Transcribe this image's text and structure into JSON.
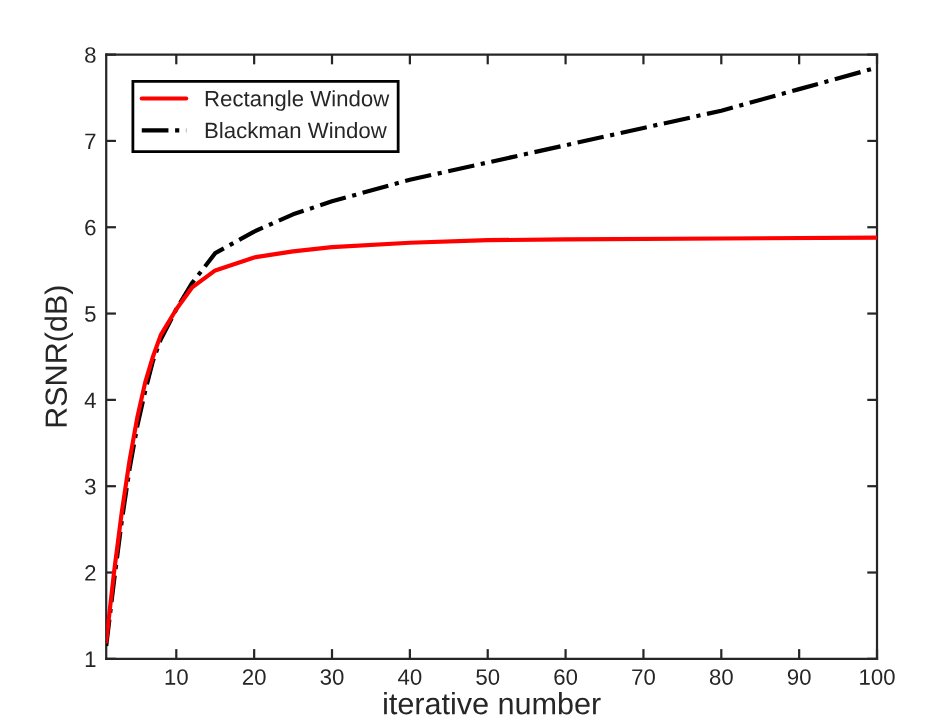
{
  "chart_data": {
    "type": "line",
    "xlabel": "iterative number",
    "ylabel": "RSNR(dB)",
    "xlim": [
      1,
      100
    ],
    "xticks": [
      10,
      20,
      30,
      40,
      50,
      60,
      70,
      80,
      90,
      100
    ],
    "ylim": [
      1,
      8
    ],
    "yticks": [
      1,
      2,
      3,
      4,
      5,
      6,
      7,
      8
    ],
    "grid": false,
    "legend": "top left",
    "series": [
      {
        "name": "Rectangle Window",
        "color": "#ff0000",
        "line_style": "solid",
        "x": [
          1,
          2,
          3,
          4,
          5,
          6,
          7,
          8,
          10,
          12,
          15,
          20,
          25,
          30,
          40,
          50,
          60,
          80,
          100
        ],
        "values": [
          1.2,
          2.0,
          2.7,
          3.3,
          3.8,
          4.2,
          4.5,
          4.75,
          5.05,
          5.3,
          5.5,
          5.65,
          5.72,
          5.77,
          5.82,
          5.85,
          5.86,
          5.87,
          5.88
        ]
      },
      {
        "name": "Blackman Window",
        "color": "#000000",
        "line_style": "dashdot",
        "x": [
          1,
          2,
          3,
          4,
          5,
          6,
          7,
          8,
          10,
          12,
          15,
          20,
          25,
          30,
          40,
          50,
          60,
          70,
          80,
          90,
          100
        ],
        "values": [
          1.15,
          1.9,
          2.6,
          3.2,
          3.7,
          4.1,
          4.45,
          4.7,
          5.05,
          5.35,
          5.7,
          5.95,
          6.15,
          6.3,
          6.55,
          6.75,
          6.95,
          7.15,
          7.35,
          7.6,
          7.85
        ]
      }
    ]
  }
}
